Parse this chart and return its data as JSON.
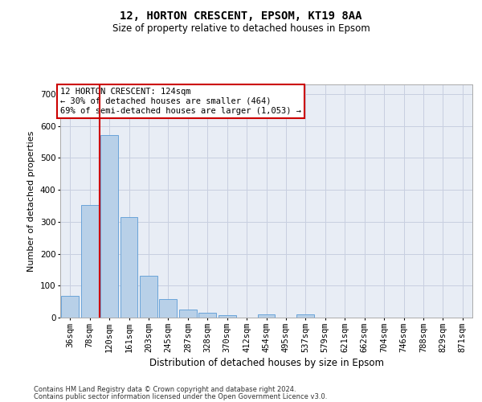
{
  "title1": "12, HORTON CRESCENT, EPSOM, KT19 8AA",
  "title2": "Size of property relative to detached houses in Epsom",
  "xlabel": "Distribution of detached houses by size in Epsom",
  "ylabel": "Number of detached properties",
  "categories": [
    "36sqm",
    "78sqm",
    "120sqm",
    "161sqm",
    "203sqm",
    "245sqm",
    "287sqm",
    "328sqm",
    "370sqm",
    "412sqm",
    "454sqm",
    "495sqm",
    "537sqm",
    "579sqm",
    "621sqm",
    "662sqm",
    "704sqm",
    "746sqm",
    "788sqm",
    "829sqm",
    "871sqm"
  ],
  "values": [
    68,
    352,
    571,
    315,
    130,
    57,
    25,
    15,
    7,
    0,
    9,
    0,
    9,
    0,
    0,
    0,
    0,
    0,
    0,
    0,
    0
  ],
  "bar_color": "#b8d0e8",
  "bar_edge_color": "#5b9bd5",
  "grid_color": "#c8cfe0",
  "background_color": "#e8edf5",
  "vline_color": "#cc0000",
  "vline_x": 1.5,
  "annotation_text": "12 HORTON CRESCENT: 124sqm\n← 30% of detached houses are smaller (464)\n69% of semi-detached houses are larger (1,053) →",
  "annotation_box_color": "#ffffff",
  "annotation_border_color": "#cc0000",
  "footer1": "Contains HM Land Registry data © Crown copyright and database right 2024.",
  "footer2": "Contains public sector information licensed under the Open Government Licence v3.0.",
  "ylim_max": 730,
  "yticks": [
    0,
    100,
    200,
    300,
    400,
    500,
    600,
    700
  ],
  "title1_fontsize": 10,
  "title2_fontsize": 8.5,
  "xlabel_fontsize": 8.5,
  "ylabel_fontsize": 8,
  "tick_fontsize": 7.5,
  "annot_fontsize": 7.5,
  "footer_fontsize": 6
}
